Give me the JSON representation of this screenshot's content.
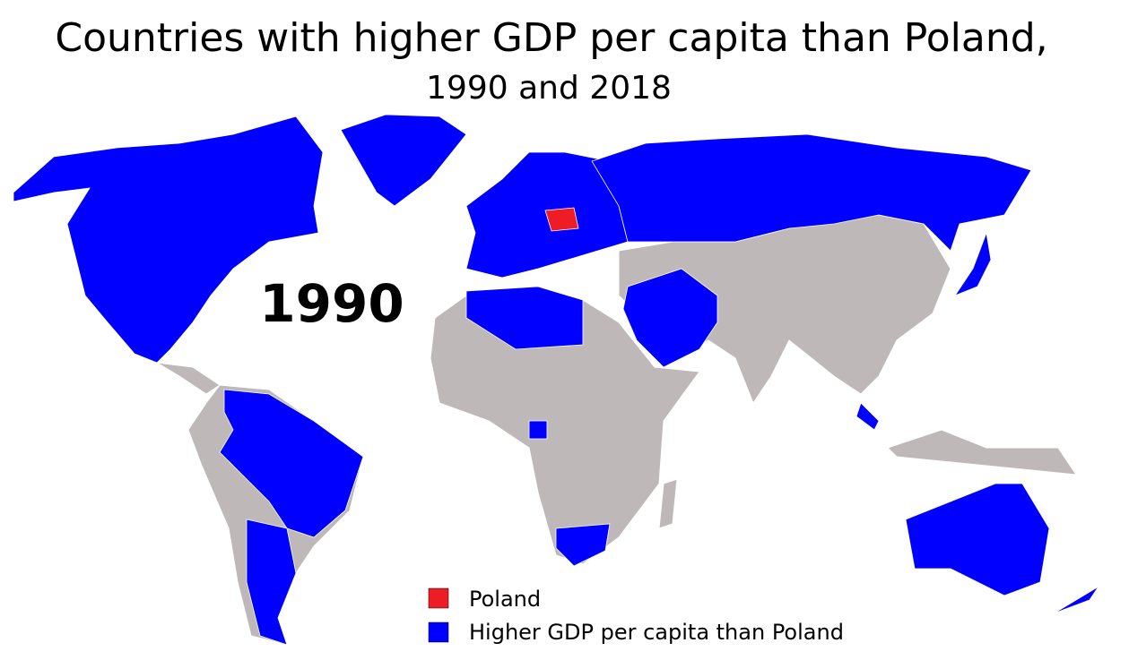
{
  "header": {
    "title": "Countries with higher GDP per capita than Poland,",
    "subtitle": "1990 and 2018"
  },
  "map": {
    "year_label": "1990"
  },
  "legend": [
    {
      "label": "Poland",
      "color": "#ee1c25"
    },
    {
      "label": "Higher GDP per capita than Poland",
      "color": "#0000ff"
    }
  ]
}
